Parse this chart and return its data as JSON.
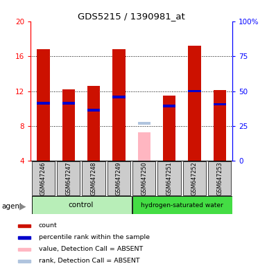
{
  "title": "GDS5215 / 1390981_at",
  "samples": [
    "GSM647246",
    "GSM647247",
    "GSM647248",
    "GSM647249",
    "GSM647250",
    "GSM647251",
    "GSM647252",
    "GSM647253"
  ],
  "count_values": [
    16.8,
    12.2,
    12.6,
    16.8,
    null,
    11.5,
    17.2,
    12.1
  ],
  "rank_values": [
    10.6,
    10.6,
    9.8,
    11.3,
    null,
    10.3,
    12.0,
    10.5
  ],
  "absent_value": [
    null,
    null,
    null,
    null,
    7.3,
    null,
    null,
    null
  ],
  "absent_rank": [
    null,
    null,
    null,
    null,
    8.3,
    null,
    null,
    null
  ],
  "ylim": [
    4,
    20
  ],
  "yticks": [
    4,
    8,
    12,
    16,
    20
  ],
  "right_yticks": [
    0,
    25,
    50,
    75,
    100
  ],
  "bar_width": 0.5,
  "count_color": "#CC1100",
  "rank_color": "#0000CC",
  "absent_value_color": "#FFB6C1",
  "absent_rank_color": "#B0C4DE",
  "control_bg": "#B8EEB8",
  "hw_bg": "#44DD44",
  "sample_bg_color": "#CCCCCC",
  "legend_items": [
    {
      "label": "count",
      "color": "#CC1100"
    },
    {
      "label": "percentile rank within the sample",
      "color": "#0000CC"
    },
    {
      "label": "value, Detection Call = ABSENT",
      "color": "#FFB6C1"
    },
    {
      "label": "rank, Detection Call = ABSENT",
      "color": "#B0C4DE"
    }
  ]
}
